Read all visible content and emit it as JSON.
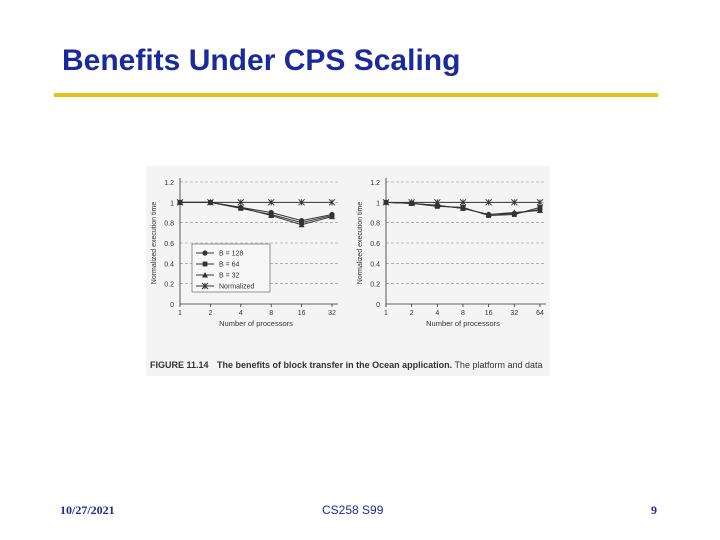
{
  "slide": {
    "title": "Benefits Under CPS Scaling",
    "footer_date": "10/27/2021",
    "footer_course": "CS258 S99",
    "footer_page": "9"
  },
  "colors": {
    "title": "#1a2a9c",
    "rule": "#e8c21a",
    "series": "#333333"
  },
  "figure": {
    "number": "FIGURE 11.14",
    "caption_bold": "The benefits of block transfer in the Ocean application.",
    "caption_rest": "The platform and data"
  },
  "chart_data": [
    {
      "type": "line",
      "xlabel": "Number of processors",
      "ylabel": "Normalized execution time",
      "categories": [
        "1",
        "2",
        "4",
        "8",
        "16",
        "32"
      ],
      "yticks": [
        "0",
        "0.2",
        "0.4",
        "0.6",
        "0.8",
        "1",
        "1.2"
      ],
      "ylim": [
        0,
        1.2
      ],
      "legend_position": "center-left",
      "series": [
        {
          "name": "B = 128",
          "marker": "circle",
          "values": [
            1.0,
            1.0,
            0.95,
            0.9,
            0.82,
            0.88
          ]
        },
        {
          "name": "B = 64",
          "marker": "square",
          "values": [
            1.0,
            1.0,
            0.94,
            0.88,
            0.8,
            0.87
          ]
        },
        {
          "name": "B = 32",
          "marker": "triangle",
          "values": [
            1.0,
            1.0,
            0.95,
            0.87,
            0.78,
            0.86
          ]
        },
        {
          "name": "Normalized",
          "marker": "star",
          "values": [
            1.0,
            1.0,
            1.0,
            1.0,
            1.0,
            1.0
          ]
        }
      ]
    },
    {
      "type": "line",
      "xlabel": "Number of processors",
      "ylabel": "Normalized execution time",
      "categories": [
        "1",
        "2",
        "4",
        "8",
        "16",
        "32",
        "64"
      ],
      "yticks": [
        "0",
        "0.2",
        "0.4",
        "0.6",
        "0.8",
        "1",
        "1.2"
      ],
      "ylim": [
        0,
        1.2
      ],
      "series": [
        {
          "name": "B = 128",
          "marker": "circle",
          "values": [
            1.0,
            0.99,
            0.97,
            0.94,
            0.88,
            0.89,
            0.93
          ]
        },
        {
          "name": "B = 64",
          "marker": "square",
          "values": [
            1.0,
            0.99,
            0.96,
            0.95,
            0.87,
            0.88,
            0.95
          ]
        },
        {
          "name": "B = 32",
          "marker": "triangle",
          "values": [
            1.0,
            0.99,
            0.97,
            0.94,
            0.88,
            0.9,
            0.92
          ]
        },
        {
          "name": "Normalized",
          "marker": "star",
          "values": [
            1.0,
            1.0,
            1.0,
            1.0,
            1.0,
            1.0,
            1.0
          ]
        }
      ]
    }
  ]
}
